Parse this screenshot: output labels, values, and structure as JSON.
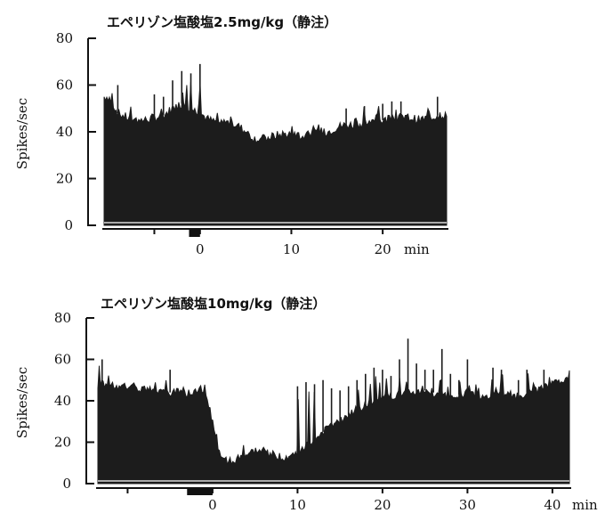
{
  "chart_data": [
    {
      "type": "area",
      "title": "エペリゾン塩酸塩2.5mg/kg（静注）",
      "ylabel": "Spikes/sec",
      "xunit": "min",
      "xlim": [
        -10.5,
        27
      ],
      "ylim": [
        0,
        80
      ],
      "yticks": [
        0,
        20,
        40,
        60,
        80
      ],
      "xticks": [
        -5,
        0,
        10,
        20
      ],
      "xtick_labels": [
        "",
        "0",
        "10",
        "20"
      ],
      "injection": [
        -1.2,
        0
      ],
      "series": [
        {
          "x": [
            -10,
            -9,
            -8,
            -7,
            -6,
            -5,
            -4,
            -3,
            -2,
            -1,
            0,
            1,
            2,
            3,
            4,
            5,
            6,
            7,
            8,
            9,
            10,
            11,
            12,
            13,
            14,
            15,
            16,
            17,
            18,
            19,
            20,
            21,
            22,
            23,
            24,
            25,
            26
          ],
          "y": [
            55,
            48,
            46,
            45,
            45,
            46,
            47,
            50,
            52,
            50,
            48,
            45,
            44,
            44,
            43,
            40,
            37,
            37,
            38,
            39,
            39,
            38,
            38,
            40,
            40,
            42,
            43,
            43,
            44,
            44,
            45,
            46,
            46,
            46,
            45,
            46,
            47
          ],
          "peaks": [
            61,
            60,
            52,
            50,
            51,
            56,
            55,
            62,
            66,
            65,
            69,
            50,
            48,
            47,
            46,
            43,
            41,
            40,
            42,
            43,
            43,
            41,
            42,
            45,
            46,
            48,
            50,
            49,
            51,
            50,
            52,
            53,
            53,
            51,
            50,
            51,
            55
          ]
        }
      ]
    },
    {
      "type": "area",
      "title": "エペリゾン塩酸塩10mg/kg（静注）",
      "ylabel": "Spikes/sec",
      "xunit": "min",
      "xlim": [
        -13.5,
        42
      ],
      "ylim": [
        0,
        80
      ],
      "yticks": [
        0,
        20,
        40,
        60,
        80
      ],
      "xticks": [
        -10,
        0,
        10,
        20,
        30,
        40
      ],
      "xtick_labels": [
        "",
        "0",
        "10",
        "20",
        "30",
        "40"
      ],
      "injection": [
        -3,
        0
      ],
      "series": [
        {
          "x": [
            -13,
            -11,
            -9,
            -7,
            -5,
            -3,
            -1,
            0,
            1,
            2,
            3,
            4,
            5,
            6,
            7,
            8,
            9,
            10,
            11,
            12,
            13,
            14,
            15,
            16,
            17,
            18,
            19,
            20,
            21,
            22,
            23,
            24,
            25,
            26,
            27,
            28,
            29,
            30,
            31,
            32,
            33,
            34,
            35,
            36,
            37,
            38,
            39,
            40,
            41
          ],
          "y": [
            48,
            47,
            46,
            45,
            44,
            44,
            46,
            30,
            12,
            11,
            12,
            14,
            16,
            15,
            14,
            13,
            13,
            15,
            18,
            22,
            25,
            28,
            30,
            33,
            36,
            38,
            40,
            41,
            42,
            43,
            44,
            44,
            45,
            44,
            43,
            42,
            43,
            44,
            43,
            42,
            42,
            44,
            43,
            42,
            44,
            45,
            46,
            48,
            50
          ],
          "peaks": [
            60,
            52,
            50,
            49,
            55,
            50,
            49,
            35,
            16,
            15,
            17,
            20,
            22,
            19,
            18,
            17,
            18,
            47,
            49,
            48,
            50,
            46,
            45,
            47,
            50,
            53,
            56,
            55,
            52,
            60,
            70,
            58,
            55,
            55,
            65,
            53,
            50,
            60,
            48,
            47,
            56,
            55,
            47,
            50,
            55,
            50,
            55,
            54,
            55
          ]
        }
      ]
    }
  ]
}
